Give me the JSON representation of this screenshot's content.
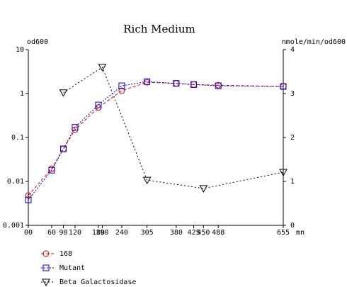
{
  "chart_data": {
    "type": "line",
    "title": "Rich Medium",
    "ylabel": "od600",
    "y2label": "nmole/min/od600",
    "xlabel": "mn",
    "xlim": [
      0,
      655
    ],
    "xticks": [
      {
        "value": 0,
        "label": "00"
      },
      60,
      90,
      120,
      180,
      190,
      240,
      305,
      380,
      425,
      450,
      488,
      655
    ],
    "ylim": [
      0.001,
      10
    ],
    "yscale": "log",
    "yticks": [
      10,
      1,
      0.1,
      0.01,
      0.001
    ],
    "y2lim": [
      0,
      4
    ],
    "y2ticks": [
      0,
      1,
      2,
      3,
      4
    ],
    "series": [
      {
        "name": "168",
        "color": "#dd0000",
        "marker": "circle",
        "dash": "4,3",
        "x": [
          0,
          60,
          90,
          120,
          180,
          240,
          305,
          380,
          425,
          488,
          655
        ],
        "values": [
          0.0048,
          0.0195,
          0.055,
          0.15,
          0.48,
          1.16,
          1.8,
          1.7,
          1.6,
          1.55,
          1.45
        ]
      },
      {
        "name": "Mutant",
        "color": "#0000cc",
        "marker": "square",
        "dash": "2,2",
        "x": [
          0,
          60,
          90,
          120,
          180,
          240,
          305,
          380,
          425,
          488,
          655
        ],
        "values": [
          0.0038,
          0.018,
          0.055,
          0.17,
          0.55,
          1.5,
          1.87,
          1.7,
          1.6,
          1.5,
          1.45
        ]
      },
      {
        "name": "Beta Galactosidase",
        "color": "#000000",
        "marker": "triangle",
        "dash": "2,3",
        "axis": "y2",
        "x": [
          90,
          190,
          305,
          450,
          655
        ],
        "values": [
          3.02,
          3.6,
          1.03,
          0.84,
          1.21
        ]
      }
    ]
  }
}
